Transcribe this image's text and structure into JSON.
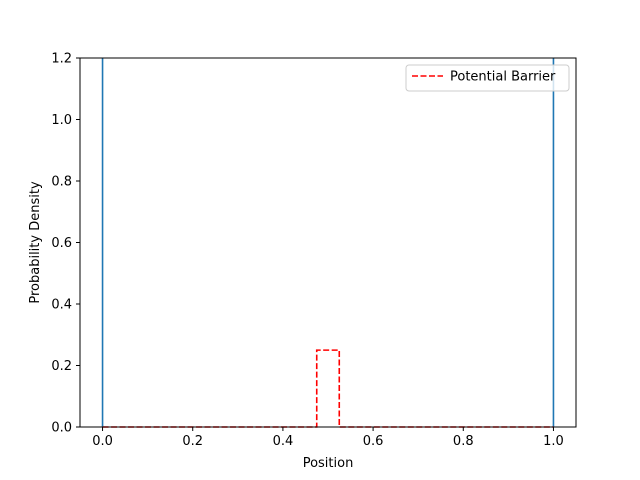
{
  "chart_data": {
    "type": "line",
    "title": "",
    "xlabel": "Position",
    "ylabel": "Probability Density",
    "xlim": [
      -0.05,
      1.05
    ],
    "ylim": [
      0.0,
      1.2
    ],
    "xticks": [
      {
        "value": 0.0,
        "label": "0.0"
      },
      {
        "value": 0.2,
        "label": "0.2"
      },
      {
        "value": 0.4,
        "label": "0.4"
      },
      {
        "value": 0.6,
        "label": "0.6"
      },
      {
        "value": 0.8,
        "label": "0.8"
      },
      {
        "value": 1.0,
        "label": "1.0"
      }
    ],
    "yticks": [
      {
        "value": 0.0,
        "label": "0.0"
      },
      {
        "value": 0.2,
        "label": "0.2"
      },
      {
        "value": 0.4,
        "label": "0.4"
      },
      {
        "value": 0.6,
        "label": "0.6"
      },
      {
        "value": 0.8,
        "label": "0.8"
      },
      {
        "value": 1.0,
        "label": "1.0"
      },
      {
        "value": 1.2,
        "label": "1.2"
      }
    ],
    "grid": false,
    "legend_position": "top-right",
    "series": [
      {
        "name": "",
        "color": "#1f77b4",
        "style": "solid",
        "in_legend": false,
        "segments": [
          [
            [
              0.0,
              0.0
            ],
            [
              0.0,
              1.2
            ]
          ],
          [
            [
              1.0,
              0.0
            ],
            [
              1.0,
              1.2
            ]
          ]
        ]
      },
      {
        "name": "Potential Barrier",
        "color": "#ff0000",
        "style": "dashed",
        "in_legend": true,
        "segments": [
          [
            [
              0.0,
              0.0
            ],
            [
              0.475,
              0.0
            ],
            [
              0.475,
              0.25
            ],
            [
              0.525,
              0.25
            ],
            [
              0.525,
              0.0
            ],
            [
              1.0,
              0.0
            ]
          ]
        ]
      }
    ]
  }
}
